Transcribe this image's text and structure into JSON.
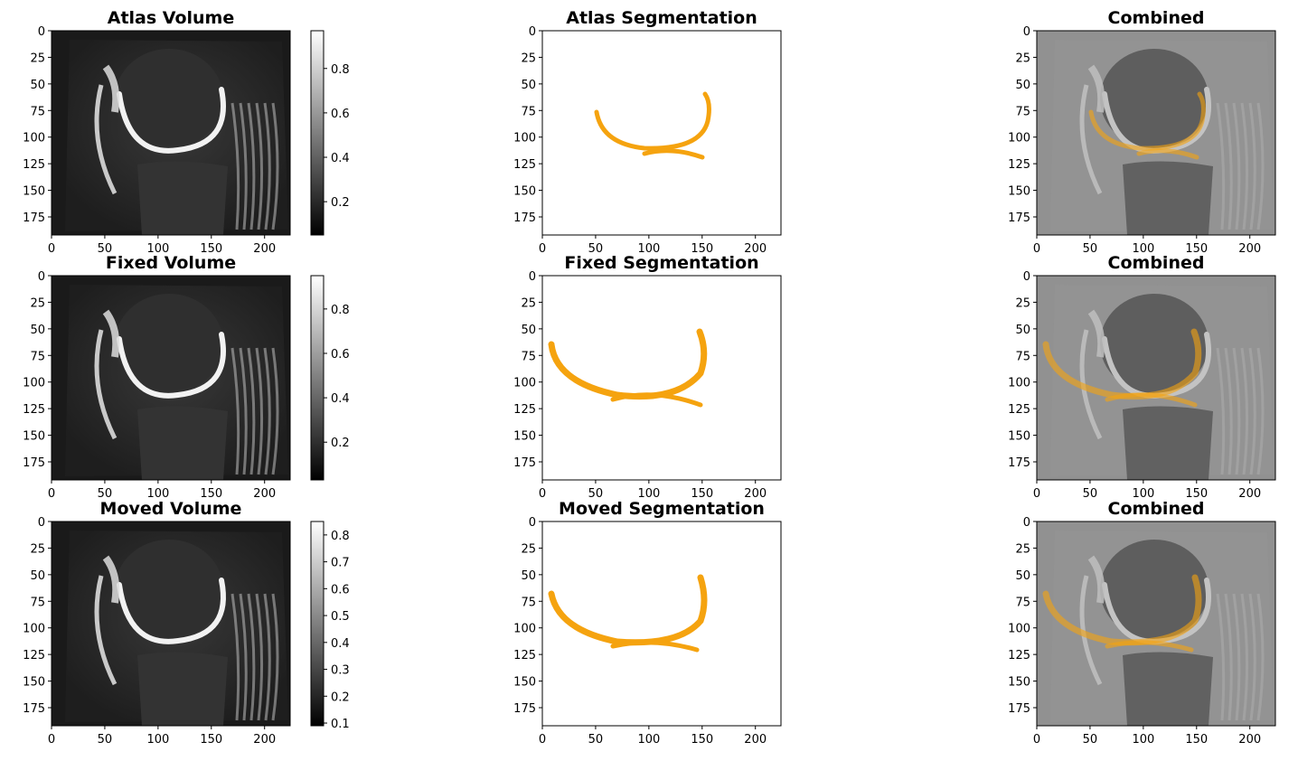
{
  "figure": {
    "rows": [
      {
        "volume_title": "Atlas Volume",
        "segmentation_title": "Atlas Segmentation",
        "combined_title": "Combined",
        "colorbar": {
          "ticks": [
            "0.2",
            "0.4",
            "0.6",
            "0.8"
          ],
          "range": [
            0.05,
            0.97
          ]
        }
      },
      {
        "volume_title": "Fixed Volume",
        "segmentation_title": "Fixed Segmentation",
        "combined_title": "Combined",
        "colorbar": {
          "ticks": [
            "0.2",
            "0.4",
            "0.6",
            "0.8"
          ],
          "range": [
            0.03,
            0.95
          ]
        }
      },
      {
        "volume_title": "Moved Volume",
        "segmentation_title": "Moved Segmentation",
        "combined_title": "Combined",
        "colorbar": {
          "ticks": [
            "0.1",
            "0.2",
            "0.3",
            "0.4",
            "0.5",
            "0.6",
            "0.7",
            "0.8"
          ],
          "range": [
            0.09,
            0.85
          ]
        }
      }
    ],
    "axes": {
      "x_ticks": [
        "0",
        "50",
        "100",
        "150",
        "200"
      ],
      "x_values": [
        0,
        50,
        100,
        150,
        200
      ],
      "x_range": [
        0,
        224
      ],
      "y_ticks": [
        "0",
        "25",
        "50",
        "75",
        "100",
        "125",
        "150",
        "175"
      ],
      "y_values": [
        0,
        25,
        50,
        75,
        100,
        125,
        150,
        175
      ],
      "y_range": [
        0,
        192
      ]
    },
    "colors": {
      "segmentation": "#F5A30F",
      "combined_background": "#8a8a8a",
      "volume_background": "#1a1a1a"
    }
  }
}
